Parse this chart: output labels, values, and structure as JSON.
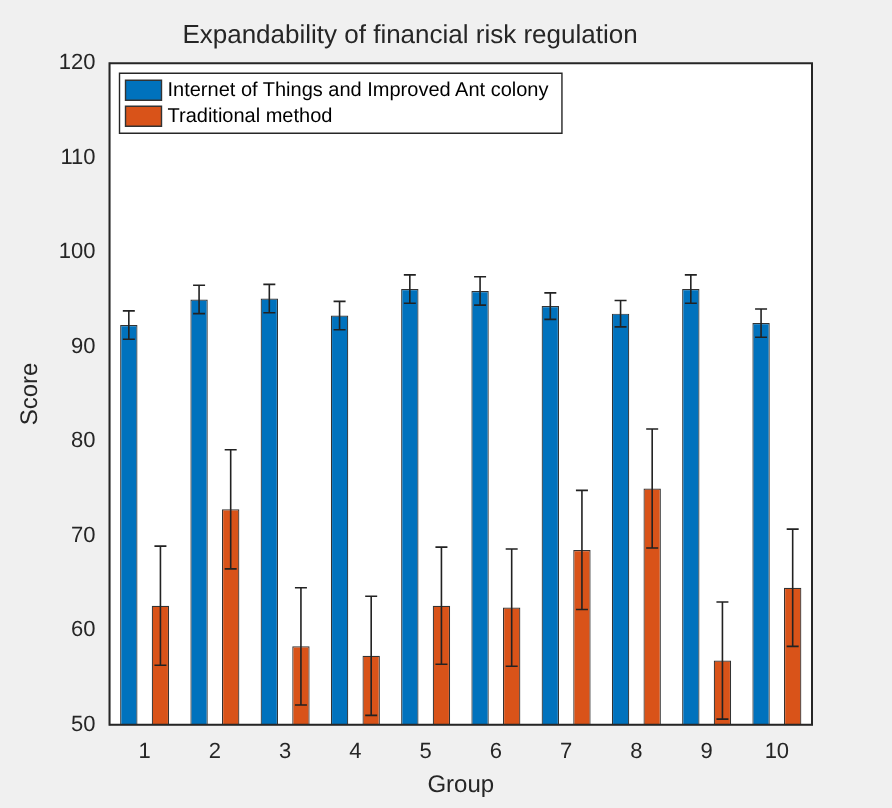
{
  "chart_data": {
    "type": "bar",
    "title": "Expandability of financial risk regulation",
    "xlabel": "Group",
    "ylabel": "Score",
    "categories": [
      "1",
      "2",
      "3",
      "4",
      "5",
      "6",
      "7",
      "8",
      "9",
      "10"
    ],
    "series": [
      {
        "name": "Internet of Things and Improved Ant colony",
        "color": "#0072bd",
        "values": [
          92.3,
          95.0,
          95.1,
          93.3,
          96.1,
          95.9,
          94.3,
          93.5,
          96.1,
          92.5
        ],
        "errors": [
          1.5,
          1.5,
          1.5,
          1.5,
          1.5,
          1.5,
          1.4,
          1.4,
          1.5,
          1.5
        ]
      },
      {
        "name": "Traditional method",
        "color": "#d95319",
        "values": [
          62.6,
          72.8,
          58.3,
          57.3,
          62.6,
          62.4,
          68.5,
          75.0,
          56.8,
          64.5
        ],
        "errors": [
          6.3,
          6.3,
          6.2,
          6.3,
          6.2,
          6.2,
          6.3,
          6.3,
          6.2,
          6.2
        ]
      }
    ],
    "ylim": [
      50,
      120
    ],
    "yticks": [
      50,
      60,
      70,
      80,
      90,
      100,
      110,
      120
    ],
    "grid": false,
    "legend": "top left"
  }
}
